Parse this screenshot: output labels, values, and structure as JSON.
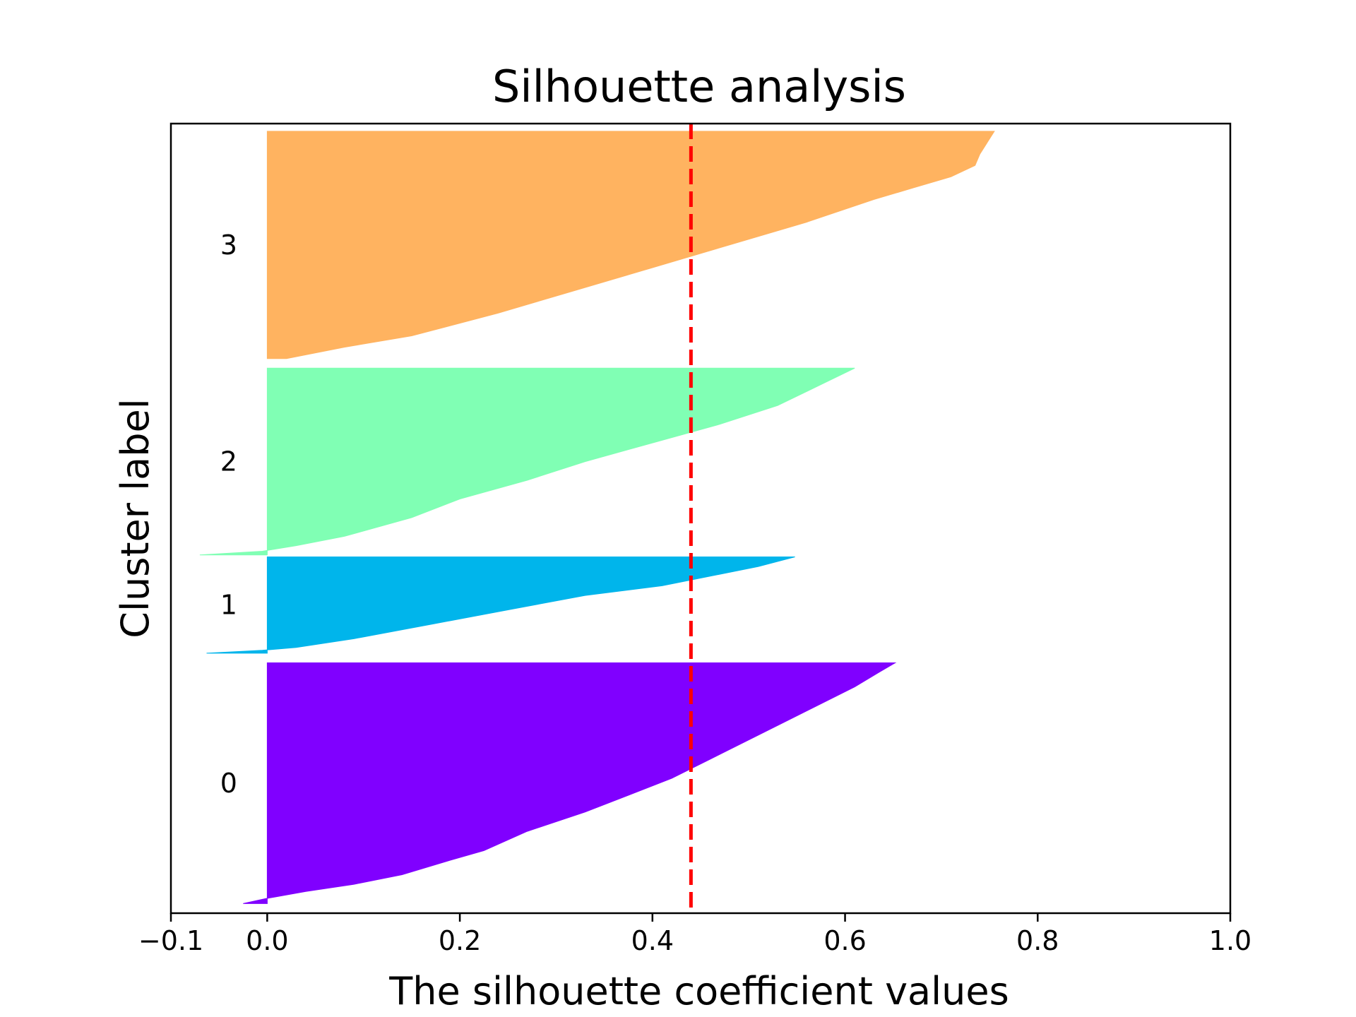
{
  "chart_data": {
    "type": "area",
    "title": "Silhouette analysis",
    "xlabel": "The silhouette coefficient values",
    "ylabel": "Cluster label",
    "xlim": [
      -0.1,
      1.0
    ],
    "xticks": [
      -0.1,
      0.0,
      0.2,
      0.4,
      0.6,
      0.8,
      1.0
    ],
    "xtick_labels": [
      "−0.1",
      "0.0",
      "0.2",
      "0.4",
      "0.6",
      "0.8",
      "1.0"
    ],
    "ylim": [
      0,
      410
    ],
    "yticks_shown": false,
    "grid": false,
    "legend": "none",
    "average_silhouette": 0.44,
    "average_line_color": "#ff0000",
    "clusters": [
      {
        "label": "0",
        "color": "#8000ff",
        "y_lower": 5,
        "y_upper": 130,
        "profile": [
          [
            0.0,
            -0.025
          ],
          [
            0.02,
            -0.002
          ],
          [
            0.05,
            0.04
          ],
          [
            0.08,
            0.09
          ],
          [
            0.12,
            0.14
          ],
          [
            0.18,
            0.19
          ],
          [
            0.22,
            0.225
          ],
          [
            0.3,
            0.27
          ],
          [
            0.38,
            0.33
          ],
          [
            0.45,
            0.375
          ],
          [
            0.52,
            0.42
          ],
          [
            0.6,
            0.46
          ],
          [
            0.7,
            0.51
          ],
          [
            0.8,
            0.56
          ],
          [
            0.9,
            0.61
          ],
          [
            0.96,
            0.635
          ],
          [
            1.0,
            0.652
          ]
        ]
      },
      {
        "label": "1",
        "color": "#00b5eb",
        "y_lower": 135,
        "y_upper": 185,
        "profile": [
          [
            0.0,
            -0.063
          ],
          [
            0.03,
            -0.005
          ],
          [
            0.06,
            0.03
          ],
          [
            0.15,
            0.09
          ],
          [
            0.3,
            0.17
          ],
          [
            0.45,
            0.25
          ],
          [
            0.6,
            0.33
          ],
          [
            0.7,
            0.41
          ],
          [
            0.8,
            0.46
          ],
          [
            0.9,
            0.51
          ],
          [
            1.0,
            0.548
          ]
        ]
      },
      {
        "label": "2",
        "color": "#80ffb4",
        "y_lower": 186,
        "y_upper": 283,
        "profile": [
          [
            0.0,
            -0.07
          ],
          [
            0.02,
            -0.005
          ],
          [
            0.05,
            0.03
          ],
          [
            0.1,
            0.08
          ],
          [
            0.2,
            0.15
          ],
          [
            0.3,
            0.2
          ],
          [
            0.4,
            0.27
          ],
          [
            0.5,
            0.33
          ],
          [
            0.6,
            0.4
          ],
          [
            0.7,
            0.47
          ],
          [
            0.8,
            0.53
          ],
          [
            0.9,
            0.57
          ],
          [
            1.0,
            0.61
          ]
        ]
      },
      {
        "label": "3",
        "color": "#ffb360",
        "y_lower": 288,
        "y_upper": 406,
        "profile": [
          [
            0.0,
            0.02
          ],
          [
            0.05,
            0.08
          ],
          [
            0.1,
            0.15
          ],
          [
            0.2,
            0.24
          ],
          [
            0.3,
            0.32
          ],
          [
            0.4,
            0.4
          ],
          [
            0.5,
            0.48
          ],
          [
            0.6,
            0.56
          ],
          [
            0.7,
            0.63
          ],
          [
            0.75,
            0.67
          ],
          [
            0.8,
            0.71
          ],
          [
            0.85,
            0.735
          ],
          [
            0.9,
            0.74
          ],
          [
            1.0,
            0.755
          ]
        ]
      }
    ]
  }
}
